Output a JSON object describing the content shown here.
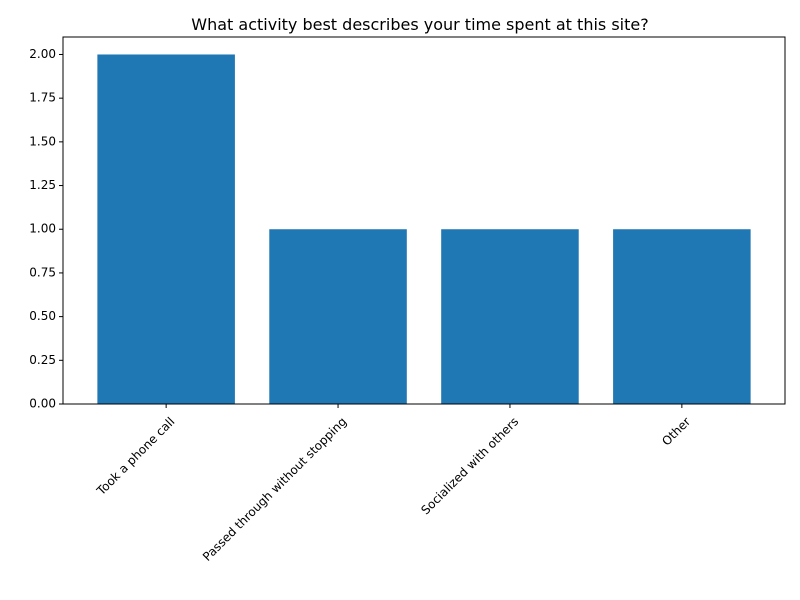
{
  "chart_data": {
    "type": "bar",
    "title": "What activity best describes your time spent at this site?",
    "xlabel": "",
    "ylabel": "",
    "categories": [
      "Took a phone call",
      "Passed through without stopping",
      "Socialized with others",
      "Other"
    ],
    "values": [
      2,
      1,
      1,
      1
    ],
    "ylim": [
      0,
      2.1
    ],
    "yticks": [
      "0.00",
      "0.25",
      "0.50",
      "0.75",
      "1.00",
      "1.25",
      "1.50",
      "1.75",
      "2.00"
    ],
    "bar_color": "#1f77b4",
    "grid": false,
    "legend": "none"
  }
}
